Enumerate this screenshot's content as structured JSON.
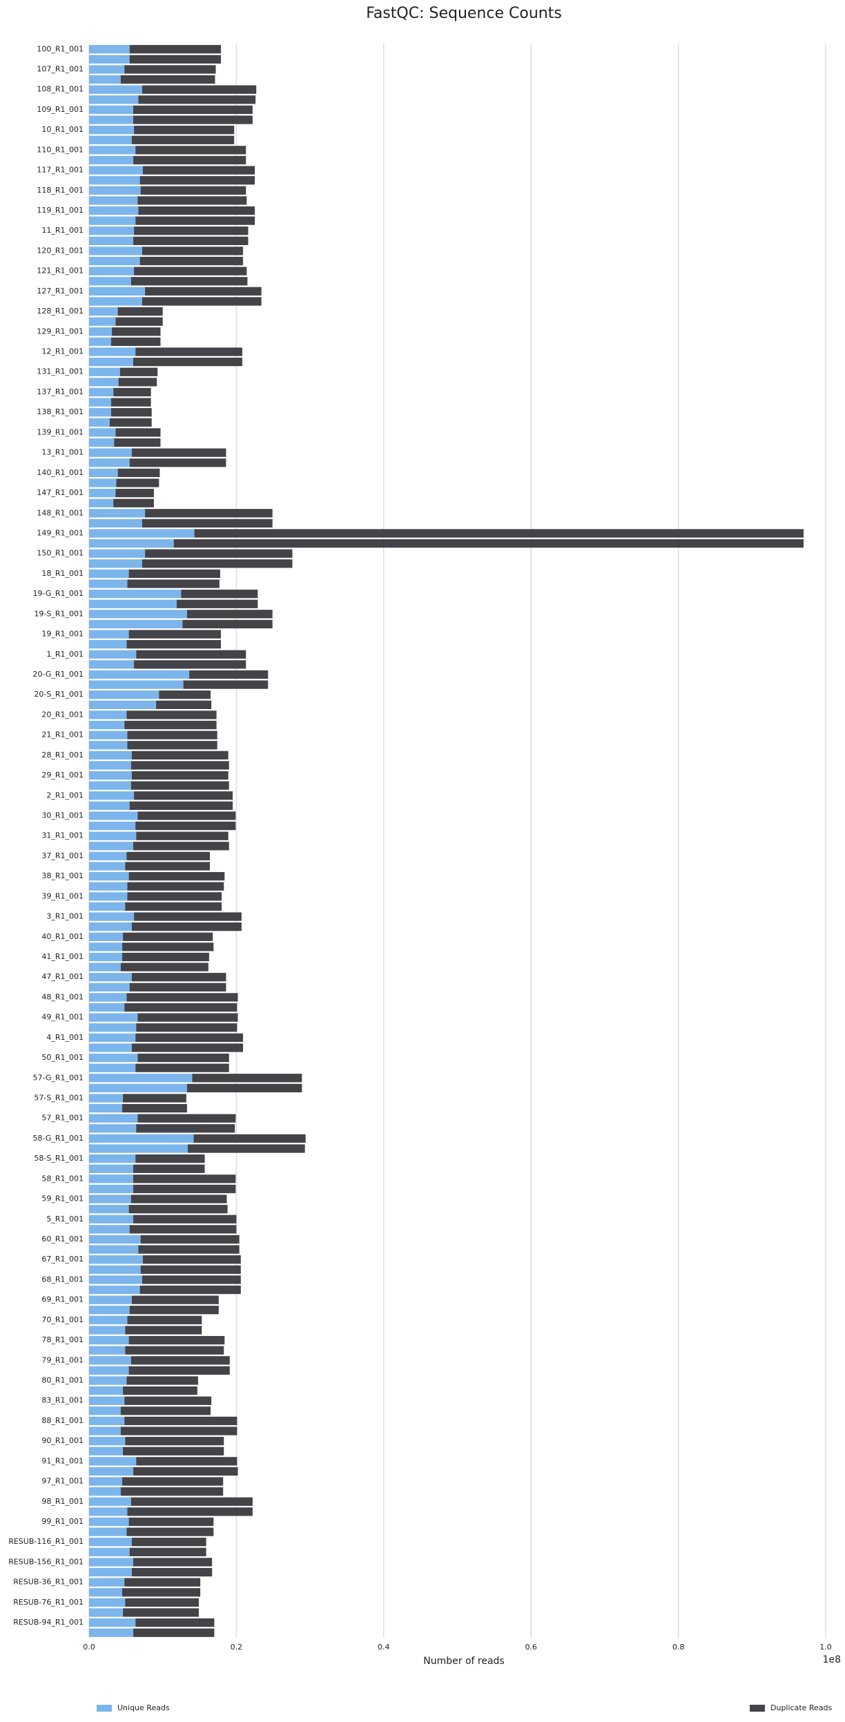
{
  "chart_data": {
    "type": "stacked_barh",
    "title": "FastQC: Sequence Counts",
    "xlabel": "Number of reads",
    "x_offset_label": "1e8",
    "categories": [
      "100_R1_001",
      null,
      "107_R1_001",
      null,
      "108_R1_001",
      null,
      "109_R1_001",
      null,
      "10_R1_001",
      null,
      "110_R1_001",
      null,
      "117_R1_001",
      null,
      "118_R1_001",
      null,
      "119_R1_001",
      null,
      "11_R1_001",
      null,
      "120_R1_001",
      null,
      "121_R1_001",
      null,
      "127_R1_001",
      null,
      "128_R1_001",
      null,
      "129_R1_001",
      null,
      "12_R1_001",
      null,
      "131_R1_001",
      null,
      "137_R1_001",
      null,
      "138_R1_001",
      null,
      "139_R1_001",
      null,
      "13_R1_001",
      null,
      "140_R1_001",
      null,
      "147_R1_001",
      null,
      "148_R1_001",
      null,
      "149_R1_001",
      null,
      "150_R1_001",
      null,
      "18_R1_001",
      null,
      "19-G_R1_001",
      null,
      "19-S_R1_001",
      null,
      "19_R1_001",
      null,
      "1_R1_001",
      null,
      "20-G_R1_001",
      null,
      "20-S_R1_001",
      null,
      "20_R1_001",
      null,
      "21_R1_001",
      null,
      "28_R1_001",
      null,
      "29_R1_001",
      null,
      "2_R1_001",
      null,
      "30_R1_001",
      null,
      "31_R1_001",
      null,
      "37_R1_001",
      null,
      "38_R1_001",
      null,
      "39_R1_001",
      null,
      "3_R1_001",
      null,
      "40_R1_001",
      null,
      "41_R1_001",
      null,
      "47_R1_001",
      null,
      "48_R1_001",
      null,
      "49_R1_001",
      null,
      "4_R1_001",
      null,
      "50_R1_001",
      null,
      "57-G_R1_001",
      null,
      "57-S_R1_001",
      null,
      "57_R1_001",
      null,
      "58-G_R1_001",
      null,
      "58-S_R1_001",
      null,
      "58_R1_001",
      null,
      "59_R1_001",
      null,
      "5_R1_001",
      null,
      "60_R1_001",
      null,
      "67_R1_001",
      null,
      "68_R1_001",
      null,
      "69_R1_001",
      null,
      "70_R1_001",
      null,
      "78_R1_001",
      null,
      "79_R1_001",
      null,
      "80_R1_001",
      null,
      "83_R1_001",
      null,
      "88_R1_001",
      null,
      "90_R1_001",
      null,
      "91_R1_001",
      null,
      "97_R1_001",
      null,
      "98_R1_001",
      null,
      "99_R1_001",
      null,
      "RESUB-116_R1_001",
      null,
      "RESUB-156_R1_001",
      null,
      "RESUB-36_R1_001",
      null,
      "RESUB-76_R1_001",
      null,
      "RESUB-94_R1_001",
      null
    ],
    "series": [
      {
        "name": "Unique Reads",
        "color": "#7cb5ec",
        "values": [
          0.055,
          0.055,
          0.048,
          0.043,
          0.072,
          0.067,
          0.06,
          0.06,
          0.061,
          0.058,
          0.063,
          0.06,
          0.073,
          0.069,
          0.07,
          0.066,
          0.067,
          0.063,
          0.061,
          0.06,
          0.072,
          0.069,
          0.061,
          0.057,
          0.076,
          0.072,
          0.039,
          0.036,
          0.031,
          0.03,
          0.063,
          0.06,
          0.042,
          0.04,
          0.033,
          0.03,
          0.03,
          0.028,
          0.036,
          0.034,
          0.058,
          0.055,
          0.039,
          0.037,
          0.036,
          0.033,
          0.076,
          0.072,
          0.143,
          0.115,
          0.076,
          0.072,
          0.054,
          0.052,
          0.125,
          0.119,
          0.133,
          0.127,
          0.054,
          0.051,
          0.064,
          0.061,
          0.136,
          0.128,
          0.095,
          0.091,
          0.051,
          0.048,
          0.052,
          0.052,
          0.058,
          0.057,
          0.058,
          0.057,
          0.061,
          0.055,
          0.066,
          0.063,
          0.064,
          0.06,
          0.051,
          0.049,
          0.054,
          0.052,
          0.052,
          0.049,
          0.061,
          0.058,
          0.046,
          0.045,
          0.045,
          0.043,
          0.058,
          0.055,
          0.051,
          0.048,
          0.066,
          0.064,
          0.063,
          0.058,
          0.066,
          0.063,
          0.14,
          0.133,
          0.046,
          0.045,
          0.066,
          0.064,
          0.142,
          0.134,
          0.063,
          0.06,
          0.06,
          0.06,
          0.057,
          0.054,
          0.06,
          0.055,
          0.07,
          0.067,
          0.073,
          0.07,
          0.072,
          0.069,
          0.058,
          0.055,
          0.052,
          0.049,
          0.054,
          0.049,
          0.057,
          0.054,
          0.051,
          0.046,
          0.048,
          0.043,
          0.048,
          0.043,
          0.049,
          0.046,
          0.064,
          0.06,
          0.045,
          0.043,
          0.057,
          0.052,
          0.054,
          0.051,
          0.058,
          0.055,
          0.06,
          0.058,
          0.048,
          0.045,
          0.049,
          0.046,
          0.063,
          0.06
        ]
      },
      {
        "name": "Duplicate Reads",
        "color": "#434348",
        "values": [
          0.124,
          0.124,
          0.124,
          0.128,
          0.155,
          0.159,
          0.162,
          0.162,
          0.136,
          0.139,
          0.15,
          0.153,
          0.152,
          0.156,
          0.143,
          0.148,
          0.158,
          0.162,
          0.155,
          0.156,
          0.137,
          0.14,
          0.153,
          0.158,
          0.158,
          0.162,
          0.061,
          0.064,
          0.066,
          0.067,
          0.145,
          0.148,
          0.051,
          0.052,
          0.051,
          0.054,
          0.055,
          0.057,
          0.061,
          0.063,
          0.128,
          0.131,
          0.057,
          0.058,
          0.052,
          0.055,
          0.173,
          0.177,
          0.827,
          0.855,
          0.2,
          0.204,
          0.124,
          0.125,
          0.104,
          0.11,
          0.116,
          0.122,
          0.125,
          0.128,
          0.149,
          0.152,
          0.107,
          0.115,
          0.07,
          0.075,
          0.122,
          0.125,
          0.122,
          0.122,
          0.131,
          0.133,
          0.131,
          0.133,
          0.134,
          0.14,
          0.133,
          0.136,
          0.125,
          0.13,
          0.113,
          0.115,
          0.13,
          0.131,
          0.128,
          0.131,
          0.146,
          0.149,
          0.122,
          0.124,
          0.118,
          0.119,
          0.128,
          0.131,
          0.151,
          0.153,
          0.136,
          0.137,
          0.146,
          0.151,
          0.124,
          0.127,
          0.149,
          0.156,
          0.086,
          0.088,
          0.133,
          0.134,
          0.152,
          0.159,
          0.094,
          0.097,
          0.139,
          0.139,
          0.13,
          0.134,
          0.14,
          0.145,
          0.134,
          0.137,
          0.133,
          0.136,
          0.134,
          0.137,
          0.118,
          0.121,
          0.101,
          0.104,
          0.13,
          0.134,
          0.134,
          0.137,
          0.097,
          0.101,
          0.118,
          0.122,
          0.153,
          0.158,
          0.134,
          0.137,
          0.137,
          0.142,
          0.137,
          0.139,
          0.165,
          0.17,
          0.115,
          0.118,
          0.101,
          0.104,
          0.107,
          0.109,
          0.103,
          0.106,
          0.1,
          0.103,
          0.107,
          0.11
        ]
      }
    ],
    "xlim": [
      0,
      1.0
    ],
    "xticks": [
      {
        "value": 0,
        "label": "0.0"
      },
      {
        "value": 0.2,
        "label": "0.2"
      },
      {
        "value": 0.4,
        "label": "0.4"
      },
      {
        "value": 0.6,
        "label": "0.6"
      },
      {
        "value": 0.8,
        "label": "0.8"
      },
      {
        "value": 1.0,
        "label": "1.0"
      }
    ],
    "grid": true,
    "legend": "bottom"
  }
}
